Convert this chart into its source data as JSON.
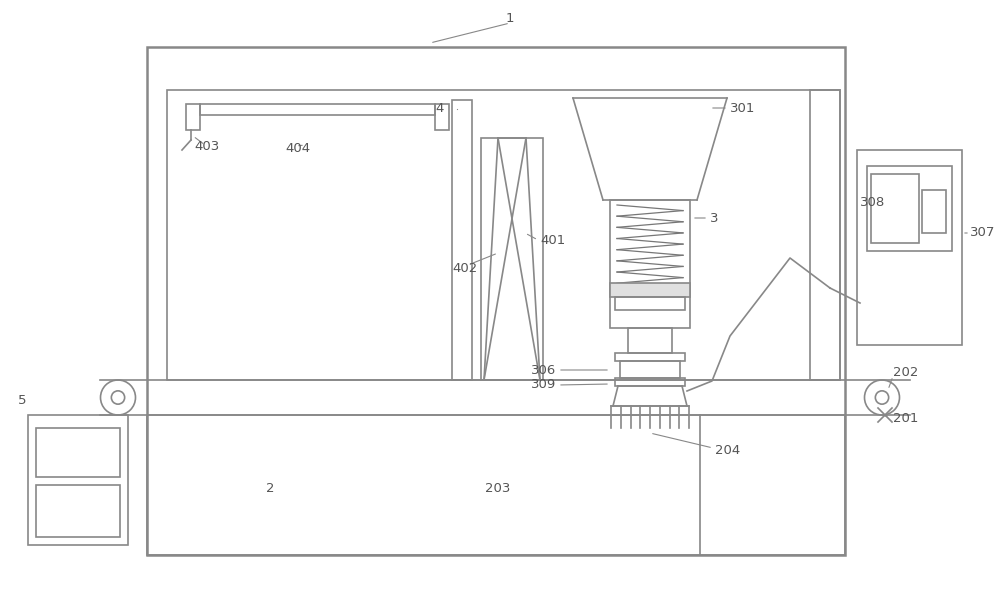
{
  "bg_color": "#ffffff",
  "lc": "#888888",
  "lw": 1.2,
  "tlw": 1.8,
  "fs": 9.5,
  "labc": "#555555",
  "fig_w": 10.0,
  "fig_h": 5.98
}
